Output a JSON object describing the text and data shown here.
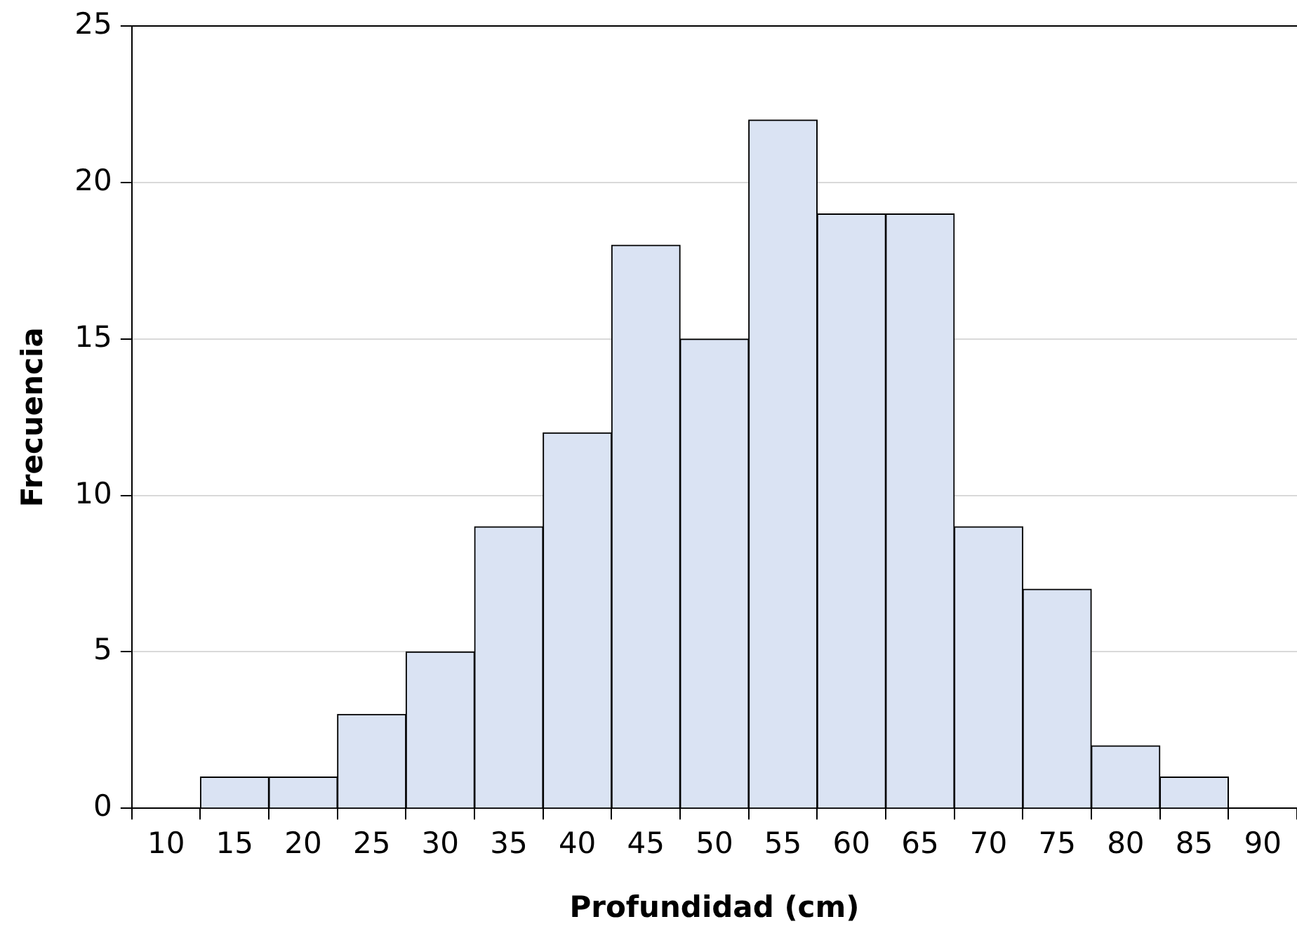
{
  "chart_data": {
    "type": "bar",
    "xlabel": "Profundidad (cm)",
    "ylabel": "Frecuencia",
    "categories": [
      "10",
      "15",
      "20",
      "25",
      "30",
      "35",
      "40",
      "45",
      "50",
      "55",
      "60",
      "65",
      "70",
      "75",
      "80",
      "85",
      "90"
    ],
    "values": [
      0,
      1,
      1,
      3,
      5,
      9,
      12,
      18,
      15,
      22,
      19,
      19,
      9,
      7,
      2,
      1,
      0
    ],
    "color": "#dae3f3",
    "ylim": [
      0,
      25
    ],
    "yticks": [
      0,
      5,
      10,
      15,
      20,
      25
    ],
    "grid": "y",
    "legend": false
  }
}
